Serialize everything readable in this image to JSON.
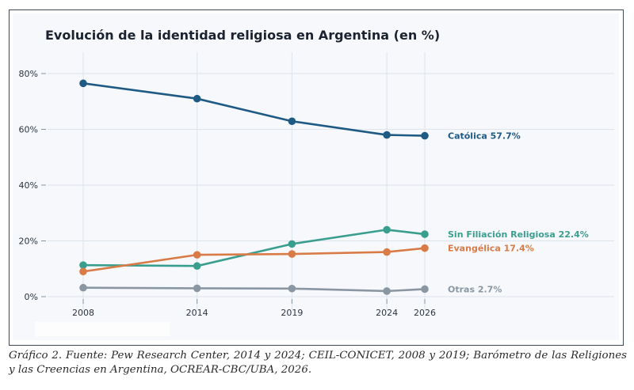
{
  "chart_data": {
    "type": "line",
    "title": "Evolución de la identidad religiosa en Argentina (en %)",
    "x": [
      2008,
      2014,
      2019,
      2024,
      2026
    ],
    "x_tick_labels": [
      "2008",
      "2014",
      "2019",
      "2024",
      "2026"
    ],
    "ylim": [
      0,
      88
    ],
    "y_ticks": [
      0,
      20,
      40,
      60,
      80
    ],
    "y_tick_labels": [
      "0%",
      "20%",
      "40%",
      "60%",
      "80%"
    ],
    "grid": true,
    "legend": "end-of-line labels",
    "series": [
      {
        "name": "Católica",
        "end_label": "Católica  57.7%",
        "color": "#1f5a85",
        "values": [
          76.5,
          71,
          62.9,
          58,
          57.7
        ]
      },
      {
        "name": "Sin Filiación Religiosa",
        "end_label": "Sin Filiación Religiosa  22.4%",
        "color": "#3a9e8f",
        "values": [
          11.3,
          11,
          18.9,
          24,
          22.4
        ]
      },
      {
        "name": "Evangélica",
        "end_label": "Evangélica  17.4%",
        "color": "#d97b47",
        "values": [
          9,
          15,
          15.3,
          16,
          17.4
        ]
      },
      {
        "name": "Otras",
        "end_label": "Otras  2.7%",
        "color": "#8a97a3",
        "values": [
          3.2,
          3,
          2.9,
          2,
          2.7
        ]
      }
    ]
  },
  "caption": "Gráfico 2. Fuente: Pew Research Center, 2014 y 2024; CEIL-CONICET, 2008 y 2019; Barómetro de las Religiones y las Creencias en Argentina, OCREAR-CBC/UBA, 2026."
}
